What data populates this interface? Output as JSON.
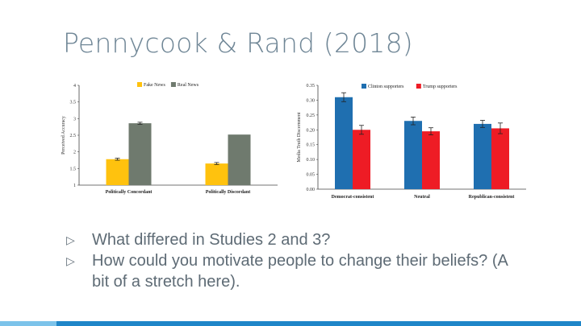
{
  "slide": {
    "title": "Pennycook & Rand (2018)"
  },
  "bullets": [
    {
      "marker": "▷",
      "text": "What differed in Studies 2 and 3?"
    },
    {
      "marker": "▷",
      "text": "How could you motivate people to change their beliefs? (A bit of a stretch here)."
    }
  ],
  "colors": {
    "title": "#6f8696",
    "bar_light_blue": "#7cc3ea",
    "bar_blue": "#1f86c8"
  },
  "chart_data": [
    {
      "type": "bar",
      "categories": [
        "Politically Concordant",
        "Politically Discordant"
      ],
      "ylabel": "Perceived Accuracy",
      "ylim": [
        1,
        4
      ],
      "yticks": [
        "1",
        "1.5",
        "2",
        "2.5",
        "3",
        "3.5",
        "4"
      ],
      "legend_position": "top",
      "series": [
        {
          "name": "Fake News",
          "color": "#ffc20e",
          "values": [
            1.78,
            1.65
          ],
          "errors": [
            0.03,
            0.03
          ]
        },
        {
          "name": "Real News",
          "color": "#6f7a6e",
          "values": [
            2.86,
            2.52
          ],
          "errors": [
            0.03,
            0.0
          ]
        }
      ]
    },
    {
      "type": "bar",
      "categories": [
        "Democrat-consistent",
        "Neutral",
        "Republican-consistent"
      ],
      "ylabel": "Media Truth Discernment",
      "ylim": [
        0,
        0.35
      ],
      "yticks": [
        "0.00",
        "0.05",
        "0.10",
        "0.15",
        "0.20",
        "0.25",
        "0.30",
        "0.35"
      ],
      "legend_position": "top",
      "series": [
        {
          "name": "Clinton supporters",
          "color": "#1f6fb0",
          "values": [
            0.31,
            0.23,
            0.22
          ],
          "errors": [
            0.015,
            0.013,
            0.012
          ]
        },
        {
          "name": "Trump supporters",
          "color": "#ee1c25",
          "values": [
            0.2,
            0.195,
            0.205
          ],
          "errors": [
            0.015,
            0.012,
            0.018
          ]
        }
      ]
    }
  ]
}
